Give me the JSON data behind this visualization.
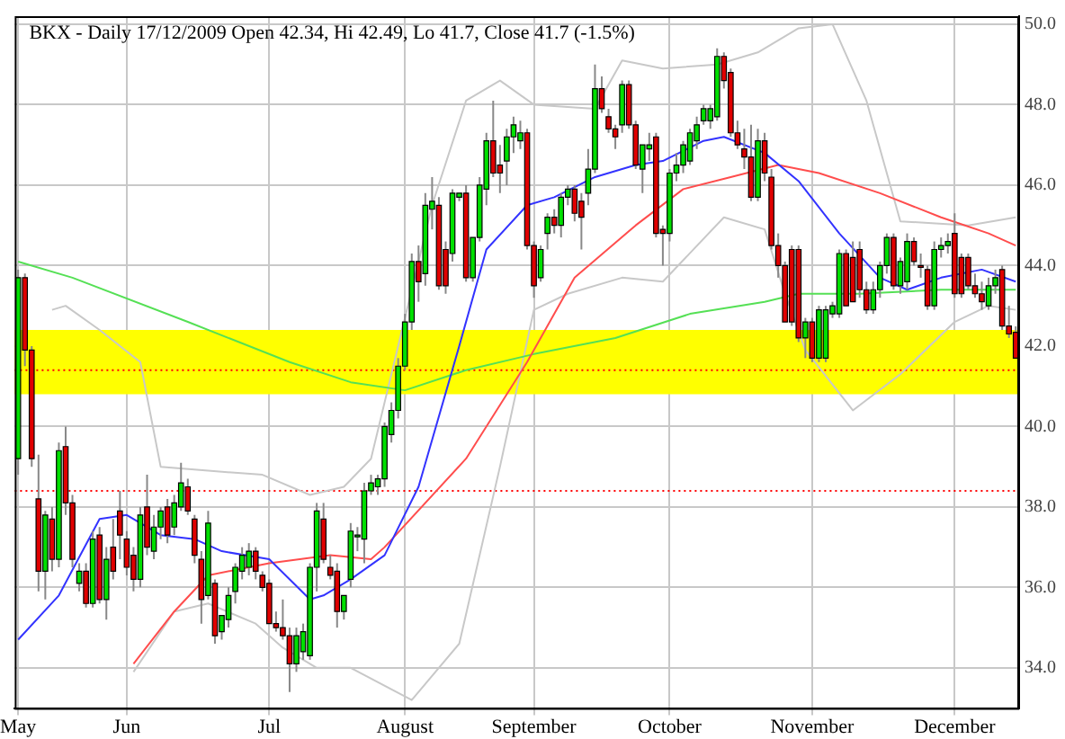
{
  "chart_data": {
    "type": "candlestick",
    "title": "BKX - Daily 17/12/2009 Open 42.34, Hi 42.49, Lo 41.7, Close 41.7 (-1.5%)",
    "categories": [
      "May",
      null,
      null,
      null,
      null,
      null,
      null,
      null,
      null,
      null,
      null,
      null,
      null,
      null,
      null,
      null,
      "Jun",
      null,
      null,
      null,
      null,
      null,
      null,
      null,
      null,
      null,
      null,
      null,
      null,
      null,
      null,
      null,
      null,
      null,
      null,
      null,
      null,
      "Jul",
      null,
      null,
      null,
      null,
      null,
      null,
      null,
      null,
      null,
      null,
      null,
      null,
      null,
      null,
      null,
      null,
      null,
      null,
      null,
      "August",
      null,
      null,
      null,
      null,
      null,
      null,
      null,
      null,
      null,
      null,
      null,
      null,
      null,
      null,
      null,
      null,
      null,
      null,
      "September",
      null,
      null,
      null,
      null,
      null,
      null,
      null,
      null,
      null,
      null,
      null,
      null,
      null,
      null,
      null,
      null,
      null,
      null,
      null,
      "October",
      null,
      null,
      null,
      null,
      null,
      null,
      null,
      null,
      null,
      null,
      null,
      null,
      null,
      null,
      null,
      null,
      null,
      null,
      null,
      null,
      "November",
      null,
      null,
      null,
      null,
      null,
      null,
      null,
      null,
      null,
      null,
      null,
      null,
      null,
      null,
      null,
      null,
      null,
      null,
      null,
      null,
      "December",
      null,
      null,
      null,
      null,
      null,
      null,
      null,
      null,
      null
    ],
    "ohlc": [
      [
        39.2,
        43.9,
        38.8,
        43.7
      ],
      [
        43.7,
        43.8,
        41.5,
        41.9
      ],
      [
        41.9,
        42.0,
        39.0,
        39.2
      ],
      [
        38.2,
        39.3,
        35.9,
        36.4
      ],
      [
        36.4,
        37.9,
        35.7,
        37.8
      ],
      [
        37.7,
        38.0,
        36.4,
        36.7
      ],
      [
        36.7,
        39.6,
        36.5,
        39.4
      ],
      [
        39.5,
        40.0,
        37.8,
        38.1
      ],
      [
        38.1,
        38.3,
        36.5,
        36.7
      ],
      [
        36.1,
        36.6,
        35.9,
        36.4
      ],
      [
        36.4,
        36.6,
        35.5,
        35.6
      ],
      [
        35.6,
        37.4,
        35.5,
        37.2
      ],
      [
        37.3,
        37.5,
        35.6,
        35.7
      ],
      [
        35.7,
        37.0,
        35.2,
        36.7
      ],
      [
        37.0,
        37.7,
        36.2,
        36.4
      ],
      [
        37.9,
        38.4,
        36.7,
        37.3
      ],
      [
        37.2,
        37.4,
        36.3,
        36.5
      ],
      [
        36.8,
        37.0,
        35.9,
        36.2
      ],
      [
        36.2,
        38.0,
        36.0,
        37.8
      ],
      [
        38.0,
        38.8,
        36.8,
        37.0
      ],
      [
        36.9,
        37.8,
        36.7,
        37.5
      ],
      [
        37.5,
        38.0,
        37.2,
        37.9
      ],
      [
        38.0,
        38.2,
        37.1,
        37.3
      ],
      [
        37.5,
        38.3,
        37.3,
        38.1
      ],
      [
        38.0,
        39.1,
        37.9,
        38.6
      ],
      [
        38.5,
        38.7,
        37.8,
        37.9
      ],
      [
        37.7,
        37.8,
        36.6,
        36.8
      ],
      [
        36.7,
        36.9,
        35.1,
        35.7
      ],
      [
        35.8,
        37.9,
        35.7,
        37.6
      ],
      [
        36.1,
        36.2,
        34.6,
        34.8
      ],
      [
        34.9,
        35.3,
        34.7,
        35.3
      ],
      [
        35.2,
        36.0,
        35.0,
        35.8
      ],
      [
        35.9,
        36.6,
        35.6,
        36.5
      ],
      [
        36.4,
        37.0,
        36.2,
        36.8
      ],
      [
        36.5,
        37.1,
        36.3,
        36.9
      ],
      [
        36.9,
        37.0,
        36.2,
        36.4
      ],
      [
        36.3,
        36.4,
        35.9,
        36.0
      ],
      [
        36.1,
        36.2,
        35.1,
        35.1
      ],
      [
        35.1,
        35.4,
        34.9,
        35.0
      ],
      [
        35.0,
        35.7,
        34.7,
        34.8
      ],
      [
        34.8,
        35.0,
        33.4,
        34.1
      ],
      [
        34.1,
        35.0,
        33.9,
        34.8
      ],
      [
        34.4,
        35.1,
        34.2,
        34.9
      ],
      [
        34.3,
        36.6,
        34.2,
        36.5
      ],
      [
        36.5,
        38.1,
        35.9,
        37.9
      ],
      [
        37.7,
        38.1,
        36.6,
        36.7
      ],
      [
        36.5,
        36.8,
        36.2,
        36.3
      ],
      [
        36.4,
        36.6,
        35.0,
        35.4
      ],
      [
        35.4,
        35.8,
        35.2,
        35.8
      ],
      [
        36.2,
        37.6,
        36.0,
        37.4
      ],
      [
        37.3,
        37.5,
        36.9,
        37.3
      ],
      [
        37.2,
        38.6,
        36.6,
        38.4
      ],
      [
        38.4,
        38.8,
        38.3,
        38.6
      ],
      [
        38.5,
        38.8,
        38.3,
        38.7
      ],
      [
        38.7,
        40.1,
        38.5,
        40.0
      ],
      [
        39.8,
        40.6,
        39.6,
        40.4
      ],
      [
        40.4,
        41.7,
        40.2,
        41.5
      ],
      [
        41.5,
        42.8,
        41.4,
        42.6
      ],
      [
        42.6,
        44.3,
        42.4,
        44.1
      ],
      [
        44.1,
        44.5,
        43.1,
        43.6
      ],
      [
        43.8,
        45.8,
        43.5,
        45.5
      ],
      [
        45.4,
        46.2,
        44.9,
        45.6
      ],
      [
        45.5,
        45.7,
        43.4,
        43.5
      ],
      [
        44.4,
        44.6,
        43.3,
        43.5
      ],
      [
        44.3,
        45.9,
        44.1,
        45.8
      ],
      [
        45.7,
        45.8,
        45.6,
        45.8
      ],
      [
        45.8,
        46.0,
        43.6,
        43.7
      ],
      [
        43.7,
        44.7,
        43.6,
        44.7
      ],
      [
        44.7,
        46.2,
        44.6,
        46.0
      ],
      [
        45.9,
        47.3,
        45.5,
        47.1
      ],
      [
        47.1,
        48.1,
        46.2,
        46.3
      ],
      [
        46.5,
        47.0,
        45.8,
        46.3
      ],
      [
        46.6,
        47.4,
        46.0,
        47.2
      ],
      [
        47.2,
        47.7,
        46.8,
        47.5
      ],
      [
        47.1,
        47.6,
        46.9,
        47.3
      ],
      [
        47.3,
        47.4,
        44.4,
        44.5
      ],
      [
        44.5,
        44.6,
        43.2,
        43.5
      ],
      [
        43.7,
        44.5,
        43.6,
        44.4
      ],
      [
        44.8,
        45.3,
        44.4,
        45.2
      ],
      [
        45.2,
        45.4,
        44.8,
        45.0
      ],
      [
        45.0,
        45.8,
        44.7,
        45.7
      ],
      [
        45.7,
        46.0,
        45.5,
        45.9
      ],
      [
        45.9,
        46.0,
        45.1,
        45.3
      ],
      [
        45.6,
        45.8,
        44.4,
        45.2
      ],
      [
        45.8,
        46.9,
        45.5,
        46.4
      ],
      [
        46.4,
        49.0,
        46.3,
        48.4
      ],
      [
        48.4,
        48.7,
        47.8,
        47.9
      ],
      [
        47.7,
        47.9,
        47.3,
        47.4
      ],
      [
        47.4,
        47.5,
        46.9,
        47.2
      ],
      [
        47.5,
        48.6,
        47.3,
        48.5
      ],
      [
        48.5,
        48.6,
        47.4,
        47.5
      ],
      [
        47.5,
        47.6,
        46.4,
        46.5
      ],
      [
        46.4,
        47.0,
        45.8,
        47.0
      ],
      [
        46.9,
        47.3,
        46.6,
        47.0
      ],
      [
        47.2,
        47.3,
        44.7,
        44.8
      ],
      [
        44.9,
        45.0,
        44.0,
        44.8
      ],
      [
        44.8,
        46.4,
        44.6,
        46.3
      ],
      [
        46.3,
        46.8,
        46.1,
        46.5
      ],
      [
        46.5,
        47.1,
        46.3,
        47.0
      ],
      [
        46.6,
        47.4,
        46.5,
        47.3
      ],
      [
        47.1,
        47.7,
        46.9,
        47.5
      ],
      [
        47.6,
        48.0,
        47.5,
        47.9
      ],
      [
        47.6,
        48.0,
        47.4,
        47.9
      ],
      [
        47.7,
        49.4,
        47.6,
        49.2
      ],
      [
        49.2,
        49.3,
        48.4,
        48.6
      ],
      [
        48.8,
        48.9,
        47.2,
        47.3
      ],
      [
        47.3,
        47.6,
        46.9,
        47.0
      ],
      [
        46.9,
        47.4,
        46.4,
        46.7
      ],
      [
        46.7,
        47.5,
        45.6,
        45.7
      ],
      [
        45.7,
        47.4,
        45.6,
        47.1
      ],
      [
        47.1,
        47.3,
        46.1,
        46.3
      ],
      [
        46.2,
        46.4,
        44.4,
        44.5
      ],
      [
        44.5,
        44.8,
        43.7,
        44.0
      ],
      [
        44.0,
        44.1,
        42.6,
        42.6
      ],
      [
        44.4,
        44.5,
        42.5,
        42.6
      ],
      [
        44.4,
        44.5,
        42.1,
        42.2
      ],
      [
        42.2,
        42.7,
        41.7,
        42.6
      ],
      [
        42.6,
        42.7,
        41.6,
        41.7
      ],
      [
        41.7,
        43.0,
        41.6,
        42.9
      ],
      [
        41.7,
        43.0,
        41.6,
        42.9
      ],
      [
        42.8,
        43.1,
        42.7,
        43.0
      ],
      [
        42.8,
        44.4,
        42.7,
        44.3
      ],
      [
        44.3,
        44.4,
        43.0,
        43.0
      ],
      [
        44.2,
        44.6,
        43.1,
        43.1
      ],
      [
        44.4,
        44.6,
        43.2,
        43.4
      ],
      [
        43.4,
        43.6,
        42.8,
        42.9
      ],
      [
        42.9,
        43.6,
        42.8,
        43.4
      ],
      [
        43.4,
        44.1,
        43.2,
        44.0
      ],
      [
        44.0,
        44.8,
        43.8,
        44.7
      ],
      [
        44.7,
        44.8,
        43.4,
        43.5
      ],
      [
        43.5,
        44.2,
        43.3,
        44.1
      ],
      [
        43.6,
        44.8,
        43.4,
        44.6
      ],
      [
        44.6,
        44.7,
        44.0,
        44.1
      ],
      [
        44.0,
        44.3,
        43.7,
        44.0
      ],
      [
        43.9,
        44.0,
        42.9,
        43.0
      ],
      [
        43.0,
        44.6,
        42.9,
        44.4
      ],
      [
        44.4,
        44.7,
        44.2,
        44.5
      ],
      [
        44.5,
        44.8,
        44.3,
        44.6
      ],
      [
        44.8,
        45.3,
        43.2,
        43.3
      ],
      [
        44.2,
        44.3,
        43.2,
        43.3
      ],
      [
        44.2,
        44.3,
        43.4,
        43.5
      ],
      [
        43.5,
        43.8,
        43.2,
        43.3
      ],
      [
        43.3,
        43.6,
        42.9,
        43.1
      ],
      [
        43.0,
        43.7,
        42.9,
        43.5
      ],
      [
        43.5,
        43.9,
        43.3,
        43.7
      ],
      [
        43.9,
        44.0,
        42.4,
        42.5
      ],
      [
        42.5,
        43.0,
        42.2,
        42.3
      ],
      [
        42.34,
        42.49,
        41.7,
        41.7
      ]
    ],
    "colors": [
      "#00e000",
      "#e00000",
      "#e00000",
      "#e00000",
      "#00e000",
      "#e00000",
      "#00e000",
      "#e00000",
      "#e00000",
      "#00e000",
      "#e00000",
      "#00e000",
      "#e00000",
      "#00e000",
      "#e00000",
      "#e00000",
      "#e00000",
      "#e00000",
      "#00e000",
      "#e00000",
      "#00e000",
      "#00e000",
      "#e00000",
      "#00e000",
      "#00e000",
      "#e00000",
      "#e00000",
      "#e00000",
      "#00e000",
      "#e00000",
      "#00e000",
      "#00e000",
      "#00e000",
      "#00e000",
      "#00e000",
      "#e00000",
      "#e00000",
      "#e00000",
      "#e00000",
      "#e00000",
      "#e00000",
      "#00e000",
      "#00e000",
      "#00e000",
      "#00e000",
      "#e00000",
      "#e00000",
      "#e00000",
      "#00e000",
      "#00e000",
      "#00e000",
      "#00e000",
      "#00e000",
      "#00e000",
      "#00e000",
      "#00e000",
      "#00e000",
      "#00e000",
      "#00e000",
      "#e00000",
      "#00e000",
      "#00e000",
      "#e00000",
      "#e00000",
      "#00e000",
      "#00e000",
      "#e00000",
      "#00e000",
      "#00e000",
      "#00e000",
      "#e00000",
      "#e00000",
      "#00e000",
      "#00e000",
      "#00e000",
      "#e00000",
      "#e00000",
      "#00e000",
      "#00e000",
      "#e00000",
      "#00e000",
      "#00e000",
      "#e00000",
      "#e00000",
      "#00e000",
      "#00e000",
      "#e00000",
      "#e00000",
      "#e00000",
      "#00e000",
      "#e00000",
      "#e00000",
      "#00e000",
      "#00e000",
      "#e00000",
      "#e00000",
      "#00e000",
      "#00e000",
      "#00e000",
      "#00e000",
      "#00e000",
      "#00e000",
      "#00e000",
      "#00e000",
      "#e00000",
      "#e00000",
      "#e00000",
      "#e00000",
      "#e00000",
      "#00e000",
      "#e00000",
      "#e00000",
      "#e00000",
      "#e00000",
      "#e00000",
      "#e00000",
      "#00e000",
      "#e00000",
      "#00e000",
      "#00e000",
      "#00e000",
      "#00e000",
      "#e00000",
      "#e00000",
      "#e00000",
      "#e00000",
      "#00e000",
      "#00e000",
      "#00e000",
      "#e00000",
      "#00e000",
      "#00e000",
      "#e00000",
      "#e00000",
      "#e00000",
      "#00e000",
      "#00e000",
      "#00e000",
      "#e00000",
      "#e00000",
      "#e00000",
      "#e00000",
      "#e00000",
      "#00e000",
      "#00e000",
      "#e00000",
      "#e00000",
      "#e00000"
    ],
    "series": [
      {
        "type": "line",
        "color": "#3333ff",
        "values": [
          34.7,
          null,
          null,
          null,
          null,
          null,
          35.8,
          null,
          null,
          null,
          null,
          null,
          37.7,
          null,
          null,
          null,
          37.8,
          null,
          null,
          null,
          null,
          37.3,
          null,
          null,
          null,
          null,
          37.2,
          null,
          null,
          null,
          36.9,
          null,
          null,
          null,
          null,
          null,
          null,
          36.7,
          null,
          null,
          null,
          null,
          null,
          35.7,
          null,
          35.8,
          null,
          null,
          null,
          36.2,
          null,
          null,
          null,
          null,
          36.8,
          null,
          null,
          null,
          null,
          38.5,
          null,
          null,
          null,
          null,
          null,
          42.0,
          null,
          null,
          null,
          44.4,
          null,
          null,
          null,
          null,
          null,
          45.5,
          null,
          null,
          null,
          45.7,
          null,
          null,
          null,
          null,
          null,
          46.2,
          null,
          null,
          null,
          null,
          null,
          46.5,
          null,
          null,
          null,
          46.6,
          null,
          null,
          null,
          null,
          null,
          47.1,
          null,
          null,
          47.2,
          null,
          null,
          null,
          null,
          null,
          46.8,
          null,
          null,
          null,
          null,
          46.1,
          null,
          null,
          null,
          null,
          null,
          44.8,
          null,
          null,
          null,
          null,
          null,
          43.7,
          null,
          null,
          null,
          43.4,
          null,
          null,
          null,
          null,
          43.7,
          null,
          null,
          null,
          null,
          null,
          43.9,
          null,
          null,
          null,
          null,
          43.6
        ]
      },
      {
        "type": "line",
        "color": "#ff4d4d",
        "values": [
          null,
          null,
          null,
          null,
          null,
          null,
          null,
          null,
          null,
          null,
          null,
          null,
          null,
          null,
          null,
          null,
          null,
          34.1,
          null,
          null,
          null,
          null,
          null,
          35.4,
          null,
          null,
          null,
          null,
          36.3,
          null,
          null,
          null,
          null,
          null,
          null,
          null,
          null,
          36.6,
          null,
          null,
          null,
          null,
          null,
          null,
          null,
          null,
          36.8,
          null,
          null,
          null,
          null,
          null,
          36.7,
          null,
          37.0,
          null,
          null,
          null,
          null,
          null,
          null,
          null,
          null,
          null,
          null,
          null,
          39.2,
          null,
          null,
          null,
          null,
          null,
          null,
          null,
          null,
          41.6,
          null,
          null,
          null,
          null,
          null,
          null,
          43.7,
          null,
          null,
          null,
          null,
          null,
          null,
          null,
          null,
          45.0,
          null,
          null,
          null,
          null,
          null,
          null,
          45.9,
          null,
          null,
          null,
          null,
          null,
          null,
          46.2,
          null,
          null,
          null,
          null,
          null,
          null,
          46.5,
          null,
          null,
          null,
          null,
          null,
          46.3,
          null,
          null,
          null,
          null,
          null,
          null,
          null,
          null,
          45.8,
          null,
          null,
          null,
          null,
          null,
          null,
          null,
          null,
          45.2,
          null,
          null,
          null,
          null,
          null,
          null,
          44.8,
          null,
          null,
          null,
          44.5
        ]
      },
      {
        "type": "line",
        "color": "#55e055",
        "values": [
          44.1,
          null,
          null,
          null,
          null,
          null,
          null,
          null,
          43.7,
          null,
          null,
          null,
          null,
          null,
          null,
          null,
          null,
          null,
          null,
          null,
          null,
          null,
          null,
          null,
          null,
          42.6,
          null,
          null,
          null,
          null,
          null,
          null,
          null,
          null,
          null,
          null,
          null,
          null,
          null,
          null,
          41.6,
          null,
          null,
          null,
          null,
          null,
          null,
          null,
          null,
          41.1,
          null,
          null,
          null,
          null,
          null,
          null,
          null,
          40.9,
          null,
          null,
          null,
          null,
          null,
          null,
          null,
          null,
          41.4,
          null,
          null,
          null,
          null,
          null,
          null,
          null,
          null,
          null,
          41.8,
          null,
          null,
          null,
          null,
          null,
          null,
          null,
          null,
          null,
          null,
          null,
          42.2,
          null,
          null,
          null,
          null,
          null,
          null,
          null,
          null,
          null,
          null,
          42.8,
          null,
          null,
          null,
          null,
          null,
          null,
          null,
          null,
          null,
          null,
          43.1,
          null,
          null,
          null,
          null,
          43.3,
          null,
          null,
          null,
          null,
          null,
          null,
          null,
          null,
          43.3,
          null,
          null,
          null,
          null,
          null,
          null,
          null,
          null,
          null,
          null,
          null,
          43.4,
          null,
          null,
          null,
          null,
          null,
          null,
          null,
          null,
          null,
          null,
          43.4
        ]
      },
      {
        "type": "line",
        "color": "#c8c8c8",
        "values": [
          null,
          null,
          null,
          null,
          null,
          42.9,
          null,
          43.0,
          null,
          null,
          null,
          null,
          42.4,
          null,
          null,
          null,
          null,
          null,
          41.6,
          null,
          null,
          39.0,
          null,
          null,
          null,
          null,
          null,
          null,
          38.9,
          null,
          null,
          null,
          null,
          null,
          null,
          null,
          38.8,
          null,
          null,
          null,
          null,
          null,
          null,
          38.3,
          null,
          null,
          null,
          null,
          38.5,
          null,
          null,
          null,
          39.2,
          null,
          null,
          null,
          null,
          null,
          null,
          null,
          null,
          45.5,
          null,
          null,
          null,
          null,
          48.1,
          null,
          null,
          null,
          null,
          48.6,
          null,
          null,
          null,
          null,
          48.0,
          null,
          null,
          null,
          null,
          null,
          null,
          null,
          null,
          47.9,
          null,
          null,
          null,
          49.1,
          null,
          null,
          null,
          null,
          null,
          48.9,
          null,
          null,
          null,
          null,
          null,
          null,
          null,
          49.0,
          null,
          null,
          null,
          null,
          null,
          49.3,
          null,
          null,
          null,
          null,
          null,
          49.9,
          null,
          null,
          null,
          null,
          50.0,
          null,
          null,
          null,
          null,
          48.1,
          null,
          null,
          null,
          null,
          45.1,
          null,
          null,
          null,
          null,
          null,
          null,
          null,
          null,
          null,
          45.0,
          null,
          null,
          null,
          null,
          null,
          null,
          45.2
        ]
      },
      {
        "type": "line",
        "color": "#c8c8c8",
        "values": [
          null,
          null,
          null,
          null,
          null,
          null,
          null,
          null,
          null,
          null,
          null,
          null,
          null,
          null,
          null,
          null,
          null,
          33.9,
          null,
          null,
          null,
          null,
          null,
          35.4,
          null,
          null,
          null,
          null,
          35.6,
          null,
          null,
          null,
          null,
          null,
          null,
          35.1,
          null,
          null,
          null,
          34.5,
          null,
          null,
          null,
          null,
          34.0,
          null,
          null,
          null,
          null,
          34.0,
          null,
          null,
          null,
          null,
          null,
          null,
          null,
          null,
          33.2,
          null,
          null,
          null,
          null,
          null,
          null,
          34.6,
          null,
          null,
          null,
          null,
          null,
          39.0,
          null,
          null,
          null,
          null,
          42.9,
          null,
          null,
          null,
          null,
          43.3,
          null,
          null,
          null,
          null,
          null,
          null,
          null,
          43.7,
          null,
          null,
          null,
          null,
          null,
          43.6,
          null,
          null,
          null,
          null,
          null,
          null,
          null,
          null,
          45.2,
          null,
          null,
          null,
          null,
          null,
          44.9,
          null,
          null,
          43.3,
          null,
          null,
          41.9,
          null,
          null,
          null,
          null,
          null,
          null,
          40.4,
          null,
          null,
          null,
          null,
          null,
          null,
          41.3,
          null,
          null,
          null,
          null,
          null,
          null,
          null,
          42.6,
          null,
          null,
          null,
          null,
          43.0,
          null,
          null,
          null,
          42.9
        ]
      }
    ],
    "ref_lines": [
      {
        "axis": "y",
        "value": 41.4,
        "color": "#ff0000",
        "line_style": "dotted"
      },
      {
        "axis": "y",
        "value": 38.4,
        "color": "#ff0000",
        "line_style": "dotted"
      }
    ],
    "bands": [
      {
        "axis": "y",
        "from": 40.8,
        "to": 42.4,
        "color": "#ffff00"
      }
    ],
    "ylim": [
      33,
      50.2
    ],
    "yticks": [
      {
        "value": 34,
        "label": "34.0"
      },
      {
        "value": 36,
        "label": "36.0"
      },
      {
        "value": 38,
        "label": "38.0"
      },
      {
        "value": 40,
        "label": "40.0"
      },
      {
        "value": 42,
        "label": "42.0"
      },
      {
        "value": 44,
        "label": "44.0"
      },
      {
        "value": 46,
        "label": "46.0"
      },
      {
        "value": 48,
        "label": "48.0"
      },
      {
        "value": 50,
        "label": "50.0"
      }
    ],
    "grid": true,
    "marker": "none",
    "line_style": "solid"
  }
}
